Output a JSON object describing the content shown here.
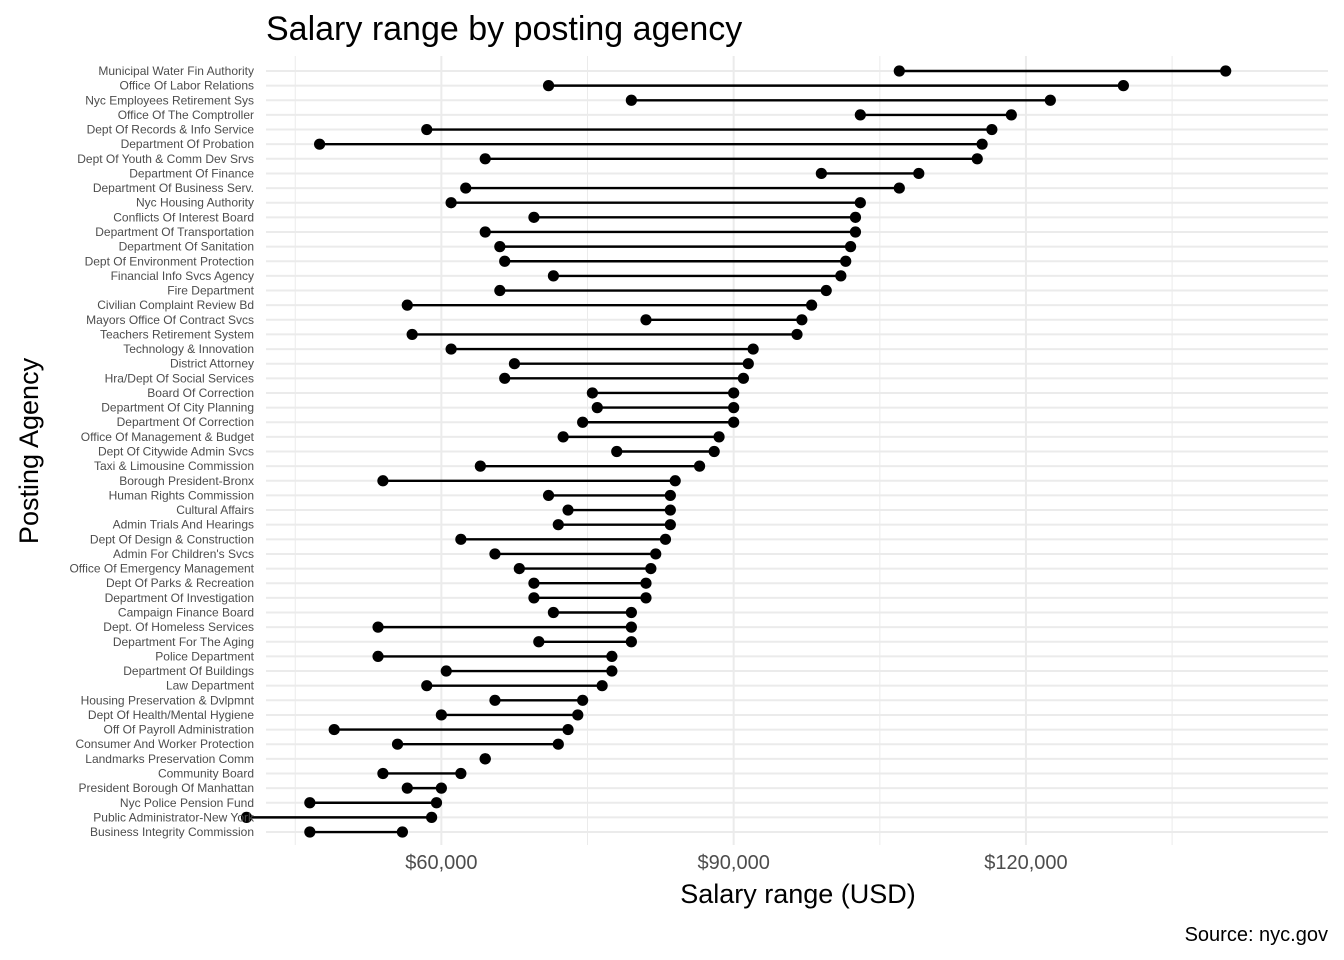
{
  "chart_data": {
    "type": "dumbbell",
    "title": "Salary range by posting agency",
    "xlabel": "Salary range (USD)",
    "ylabel": "Posting Agency",
    "caption": "Source: nyc.gov",
    "xlim": [
      42000,
      151000
    ],
    "x_ticks": [
      60000,
      90000,
      120000
    ],
    "x_tick_labels": [
      "$60,000",
      "$90,000",
      "$120,000"
    ],
    "x_minor_ticks": [
      45000,
      75000,
      105000,
      135000
    ],
    "grid": true,
    "legend": "none",
    "agencies": [
      {
        "name": "Municipal Water Fin Authority",
        "min": 107000,
        "max": 140500
      },
      {
        "name": "Office Of Labor Relations",
        "min": 71000,
        "max": 130000
      },
      {
        "name": "Nyc Employees Retirement Sys",
        "min": 79500,
        "max": 122500
      },
      {
        "name": "Office Of The Comptroller",
        "min": 103000,
        "max": 118500
      },
      {
        "name": "Dept Of Records & Info Service",
        "min": 58500,
        "max": 116500
      },
      {
        "name": "Department Of Probation",
        "min": 47500,
        "max": 115500
      },
      {
        "name": "Dept Of Youth & Comm Dev Srvs",
        "min": 64500,
        "max": 115000
      },
      {
        "name": "Department Of Finance",
        "min": 99000,
        "max": 109000
      },
      {
        "name": "Department Of Business Serv.",
        "min": 62500,
        "max": 107000
      },
      {
        "name": "Nyc Housing Authority",
        "min": 61000,
        "max": 103000
      },
      {
        "name": "Conflicts Of Interest Board",
        "min": 69500,
        "max": 102500
      },
      {
        "name": "Department Of Transportation",
        "min": 64500,
        "max": 102500
      },
      {
        "name": "Department Of Sanitation",
        "min": 66000,
        "max": 102000
      },
      {
        "name": "Dept Of Environment Protection",
        "min": 66500,
        "max": 101500
      },
      {
        "name": "Financial Info Svcs Agency",
        "min": 71500,
        "max": 101000
      },
      {
        "name": "Fire Department",
        "min": 66000,
        "max": 99500
      },
      {
        "name": "Civilian Complaint Review Bd",
        "min": 56500,
        "max": 98000
      },
      {
        "name": "Mayors Office Of Contract Svcs",
        "min": 81000,
        "max": 97000
      },
      {
        "name": "Teachers Retirement System",
        "min": 57000,
        "max": 96500
      },
      {
        "name": "Technology & Innovation",
        "min": 61000,
        "max": 92000
      },
      {
        "name": "District Attorney",
        "min": 67500,
        "max": 91500
      },
      {
        "name": "Hra/Dept Of Social Services",
        "min": 66500,
        "max": 91000
      },
      {
        "name": "Board Of Correction",
        "min": 75500,
        "max": 90000
      },
      {
        "name": "Department Of City Planning",
        "min": 76000,
        "max": 90000
      },
      {
        "name": "Department Of Correction",
        "min": 74500,
        "max": 90000
      },
      {
        "name": "Office Of Management & Budget",
        "min": 72500,
        "max": 88500
      },
      {
        "name": "Dept Of Citywide Admin Svcs",
        "min": 78000,
        "max": 88000
      },
      {
        "name": "Taxi & Limousine Commission",
        "min": 64000,
        "max": 86500
      },
      {
        "name": "Borough President-Bronx",
        "min": 54000,
        "max": 84000
      },
      {
        "name": "Human Rights Commission",
        "min": 71000,
        "max": 83500
      },
      {
        "name": "Cultural Affairs",
        "min": 73000,
        "max": 83500
      },
      {
        "name": "Admin Trials And Hearings",
        "min": 72000,
        "max": 83500
      },
      {
        "name": "Dept Of Design & Construction",
        "min": 62000,
        "max": 83000
      },
      {
        "name": "Admin For Children's Svcs",
        "min": 65500,
        "max": 82000
      },
      {
        "name": "Office Of Emergency Management",
        "min": 68000,
        "max": 81500
      },
      {
        "name": "Dept Of Parks & Recreation",
        "min": 69500,
        "max": 81000
      },
      {
        "name": "Department Of Investigation",
        "min": 69500,
        "max": 81000
      },
      {
        "name": "Campaign Finance Board",
        "min": 71500,
        "max": 79500
      },
      {
        "name": "Dept. Of Homeless Services",
        "min": 53500,
        "max": 79500
      },
      {
        "name": "Department For The Aging",
        "min": 70000,
        "max": 79500
      },
      {
        "name": "Police Department",
        "min": 53500,
        "max": 77500
      },
      {
        "name": "Department Of Buildings",
        "min": 60500,
        "max": 77500
      },
      {
        "name": "Law Department",
        "min": 58500,
        "max": 76500
      },
      {
        "name": "Housing Preservation & Dvlpmnt",
        "min": 65500,
        "max": 74500
      },
      {
        "name": "Dept Of Health/Mental Hygiene",
        "min": 60000,
        "max": 74000
      },
      {
        "name": "Off Of Payroll Administration",
        "min": 49000,
        "max": 73000
      },
      {
        "name": "Consumer And Worker Protection",
        "min": 55500,
        "max": 72000
      },
      {
        "name": "Landmarks Preservation Comm",
        "min": 64500,
        "max": 64500
      },
      {
        "name": "Community Board",
        "min": 54000,
        "max": 62000
      },
      {
        "name": "President Borough Of Manhattan",
        "min": 56500,
        "max": 60000
      },
      {
        "name": "Nyc Police Pension Fund",
        "min": 46500,
        "max": 59500
      },
      {
        "name": "Public Administrator-New York",
        "min": 40000,
        "max": 59000
      },
      {
        "name": "Business Integrity Commission",
        "min": 46500,
        "max": 56000
      }
    ]
  }
}
